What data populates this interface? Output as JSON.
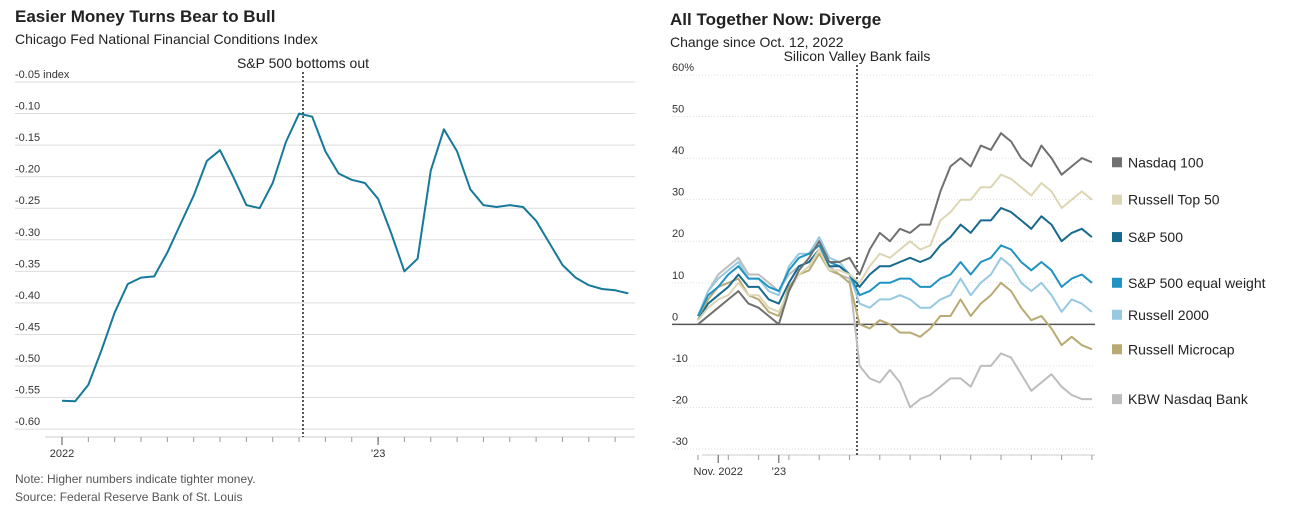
{
  "chart_data": [
    {
      "type": "line",
      "title": "Easier Money Turns Bear to Bull",
      "subtitle": "Chicago Fed National Financial Conditions Index",
      "annotation": "S&P 500 bottoms out",
      "note": "Note: Higher numbers indicate tighter money.",
      "source": "Source: Federal Reserve Bank of St. Louis",
      "color": "#17799a",
      "categories": [
        "2022",
        null,
        null,
        null,
        null,
        null,
        null,
        null,
        null,
        null,
        null,
        null,
        null,
        null,
        null,
        null,
        null,
        null,
        null,
        null,
        null,
        null,
        null,
        null,
        "’23",
        null,
        null,
        null,
        null,
        null,
        null,
        null,
        null,
        null,
        null,
        null,
        null,
        null,
        null,
        null,
        null,
        null,
        null,
        null
      ],
      "values": [
        -0.555,
        -0.556,
        -0.53,
        -0.475,
        -0.415,
        -0.37,
        -0.36,
        -0.358,
        -0.32,
        -0.275,
        -0.23,
        -0.175,
        -0.158,
        -0.2,
        -0.245,
        -0.25,
        -0.21,
        -0.145,
        -0.1,
        -0.105,
        -0.16,
        -0.195,
        -0.205,
        -0.21,
        -0.235,
        -0.29,
        -0.35,
        -0.33,
        -0.19,
        -0.125,
        -0.16,
        -0.22,
        -0.245,
        -0.248,
        -0.245,
        -0.248,
        -0.27,
        -0.305,
        -0.34,
        -0.36,
        -0.372,
        -0.378,
        -0.38,
        -0.385
      ],
      "ylim": [
        -0.6125,
        -0.05
      ],
      "yticks": [
        {
          "value": -0.05,
          "label": "-0.05 index"
        },
        {
          "value": -0.1,
          "label": "-0.10"
        },
        {
          "value": -0.15,
          "label": "-0.15"
        },
        {
          "value": -0.2,
          "label": "-0.20"
        },
        {
          "value": -0.25,
          "label": "-0.25"
        },
        {
          "value": -0.3,
          "label": "-0.30"
        },
        {
          "value": -0.35,
          "label": "-0.35"
        },
        {
          "value": -0.4,
          "label": "-0.40"
        },
        {
          "value": -0.45,
          "label": "-0.45"
        },
        {
          "value": -0.5,
          "label": "-0.50"
        },
        {
          "value": -0.55,
          "label": "-0.55"
        },
        {
          "value": -0.6,
          "label": "-0.60"
        }
      ],
      "grid": true
    },
    {
      "type": "line",
      "title": "All Together Now: Diverge",
      "subtitle": "Change since Oct. 12, 2022",
      "annotation": "Silicon Valley Bank fails",
      "categories": [
        null,
        null,
        "Nov. 2022",
        null,
        null,
        null,
        null,
        null,
        "’23",
        null,
        null,
        null,
        null,
        null,
        null,
        null,
        null,
        null,
        null,
        null,
        null,
        null,
        null,
        null,
        null,
        null,
        null,
        null,
        null,
        null,
        null,
        null,
        null,
        null,
        null,
        null,
        null,
        null,
        null,
        null
      ],
      "series": [
        {
          "name": "Nasdaq 100",
          "color": "#707070",
          "values": [
            0,
            2,
            4,
            6,
            8,
            5,
            4,
            2,
            0,
            8,
            13,
            16,
            20,
            15,
            15,
            16,
            12,
            18,
            22,
            20,
            23,
            22,
            24,
            24,
            32,
            38,
            40,
            38,
            43,
            42,
            46,
            44,
            40,
            38,
            43,
            40,
            36,
            38,
            40,
            39
          ]
        },
        {
          "name": "Russell Top 50",
          "color": "#dcd6b4",
          "values": [
            1,
            4,
            6,
            7,
            10,
            7,
            7,
            4,
            3,
            8,
            12,
            14,
            18,
            13,
            13,
            12,
            10,
            14,
            17,
            16,
            18,
            20,
            18,
            19,
            25,
            27,
            30,
            30,
            33,
            33,
            36,
            35,
            33,
            31,
            34,
            32,
            28,
            30,
            32,
            30
          ]
        },
        {
          "name": "S&P 500",
          "color": "#176a8e",
          "values": [
            1,
            5,
            7,
            9,
            12,
            9,
            9,
            6,
            5,
            10,
            14,
            15,
            18,
            14,
            14,
            12,
            9,
            12,
            14,
            14,
            15,
            16,
            15,
            16,
            19,
            21,
            24,
            22,
            25,
            25,
            28,
            27,
            25,
            23,
            26,
            24,
            20,
            22,
            23,
            21
          ]
        },
        {
          "name": "S&P 500 equal weight",
          "color": "#1f93c4",
          "values": [
            2,
            7,
            9,
            12,
            14,
            11,
            11,
            9,
            8,
            13,
            16,
            17,
            19,
            15,
            14,
            12,
            7,
            8,
            10,
            10,
            11,
            11,
            9,
            9,
            11,
            12,
            15,
            12,
            15,
            16,
            19,
            18,
            15,
            13,
            15,
            13,
            9,
            11,
            12,
            10
          ]
        },
        {
          "name": "Russell 2000",
          "color": "#97c9e2",
          "values": [
            2,
            8,
            11,
            13,
            15,
            11,
            11,
            8,
            7,
            14,
            17,
            17,
            21,
            16,
            15,
            12,
            5,
            4,
            6,
            6,
            7,
            6,
            4,
            4,
            6,
            7,
            11,
            7,
            10,
            12,
            16,
            14,
            10,
            8,
            10,
            7,
            3,
            6,
            5,
            3
          ]
        },
        {
          "name": "Russell Microcap",
          "color": "#b8aa72",
          "values": [
            1,
            6,
            9,
            10,
            11,
            7,
            6,
            3,
            2,
            9,
            12,
            13,
            17,
            13,
            12,
            10,
            0,
            -1,
            1,
            0,
            -2,
            -2,
            -3,
            -1,
            2,
            2,
            6,
            2,
            5,
            7,
            10,
            8,
            4,
            1,
            2,
            -1,
            -5,
            -3,
            -5,
            -6
          ]
        },
        {
          "name": "KBW Nasdaq Bank",
          "color": "#bdbdbd",
          "values": [
            2,
            8,
            12,
            14,
            16,
            12,
            12,
            10,
            8,
            12,
            14,
            15,
            18,
            14,
            12,
            11,
            -10,
            -13,
            -14,
            -11,
            -14,
            -20,
            -18,
            -17,
            -15,
            -13,
            -13,
            -15,
            -10,
            -10,
            -7,
            -8,
            -12,
            -16,
            -14,
            -12,
            -15,
            -17,
            -18,
            -18
          ]
        }
      ],
      "ylim": [
        -30,
        60
      ],
      "yticks": [
        -30,
        -20,
        -10,
        0,
        10,
        20,
        30,
        40,
        50,
        {
          "value": 60,
          "label": "60%"
        }
      ],
      "grid": true
    }
  ]
}
